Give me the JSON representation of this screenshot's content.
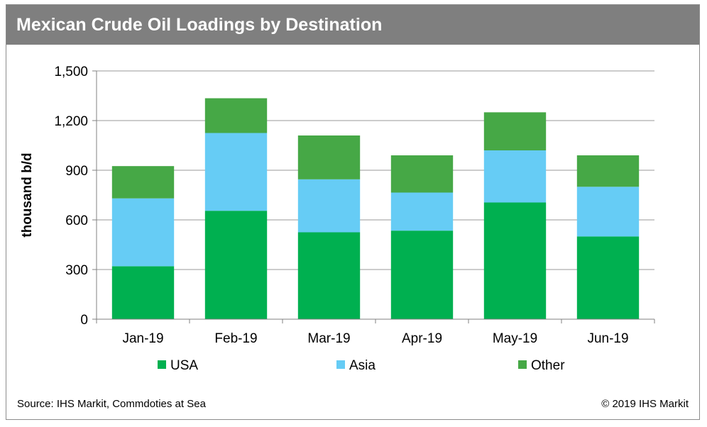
{
  "title": "Mexican Crude Oil Loadings by Destination",
  "source": "Source: IHS Markit, Commdoties at Sea",
  "copyright": "© 2019 IHS Markit",
  "chart_data": {
    "type": "bar",
    "stacked": true,
    "title": "Mexican Crude Oil Loadings by Destination",
    "xlabel": "",
    "ylabel": "thousand b/d",
    "ylim": [
      0,
      1500
    ],
    "yticks": [
      0,
      300,
      600,
      900,
      1200,
      1500
    ],
    "ytick_labels": [
      "0",
      "300",
      "600",
      "900",
      "1,200",
      "1,500"
    ],
    "categories": [
      "Jan-19",
      "Feb-19",
      "Mar-19",
      "Apr-19",
      "May-19",
      "Jun-19"
    ],
    "grid": true,
    "legend_position": "bottom",
    "series": [
      {
        "name": "USA",
        "color": "#00b050",
        "values": [
          320,
          655,
          525,
          535,
          705,
          500
        ]
      },
      {
        "name": "Asia",
        "color": "#66ccf5",
        "values": [
          410,
          470,
          320,
          230,
          315,
          300
        ]
      },
      {
        "name": "Other",
        "color": "#46a846",
        "values": [
          195,
          210,
          265,
          225,
          230,
          190
        ]
      }
    ]
  }
}
